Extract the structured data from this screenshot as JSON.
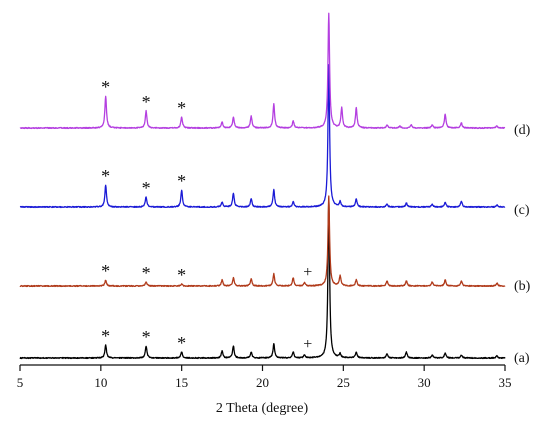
{
  "chart_data": {
    "type": "line",
    "xlabel": "2 Theta (degree)",
    "xlim": [
      5,
      35
    ],
    "x_ticks": [
      "5",
      "10",
      "15",
      "20",
      "25",
      "30",
      "35"
    ],
    "y_ticks_shown": false,
    "grid": false,
    "series": [
      {
        "name": "(a)",
        "color": "#000000",
        "peaks": [
          [
            10.3,
            13
          ],
          [
            12.8,
            12
          ],
          [
            15.0,
            6
          ],
          [
            17.5,
            7
          ],
          [
            18.2,
            12
          ],
          [
            19.3,
            6
          ],
          [
            20.7,
            14
          ],
          [
            21.9,
            6
          ],
          [
            22.6,
            3
          ],
          [
            24.1,
            160
          ],
          [
            24.8,
            4
          ],
          [
            25.8,
            6
          ],
          [
            27.7,
            4
          ],
          [
            28.9,
            6
          ],
          [
            30.5,
            3
          ],
          [
            31.3,
            5
          ],
          [
            32.3,
            3
          ],
          [
            34.5,
            2
          ]
        ],
        "markers": [
          {
            "x": 10.3,
            "symbol": "*"
          },
          {
            "x": 12.8,
            "symbol": "*"
          },
          {
            "x": 15.0,
            "symbol": "*"
          },
          {
            "x": 22.8,
            "symbol": "+"
          }
        ]
      },
      {
        "name": "(b)",
        "color": "#b03a1a",
        "peaks": [
          [
            10.3,
            6
          ],
          [
            12.8,
            4
          ],
          [
            15.0,
            2
          ],
          [
            17.5,
            6
          ],
          [
            18.2,
            8
          ],
          [
            19.3,
            7
          ],
          [
            20.7,
            12
          ],
          [
            21.9,
            8
          ],
          [
            22.6,
            3
          ],
          [
            24.1,
            90
          ],
          [
            24.8,
            10
          ],
          [
            25.8,
            6
          ],
          [
            27.7,
            5
          ],
          [
            28.9,
            5
          ],
          [
            30.5,
            4
          ],
          [
            31.3,
            6
          ],
          [
            32.3,
            5
          ],
          [
            34.5,
            3
          ]
        ],
        "markers": [
          {
            "x": 10.3,
            "symbol": "*"
          },
          {
            "x": 12.8,
            "symbol": "*"
          },
          {
            "x": 15.0,
            "symbol": "*"
          },
          {
            "x": 22.8,
            "symbol": "+"
          }
        ]
      },
      {
        "name": "(c)",
        "color": "#1a1ad6",
        "peaks": [
          [
            10.3,
            22
          ],
          [
            12.8,
            10
          ],
          [
            15.0,
            17
          ],
          [
            17.5,
            5
          ],
          [
            18.2,
            14
          ],
          [
            19.3,
            8
          ],
          [
            20.7,
            17
          ],
          [
            21.9,
            5
          ],
          [
            24.1,
            142
          ],
          [
            24.8,
            5
          ],
          [
            25.8,
            8
          ],
          [
            27.7,
            3
          ],
          [
            28.9,
            4
          ],
          [
            30.5,
            3
          ],
          [
            31.3,
            5
          ],
          [
            32.3,
            6
          ],
          [
            34.5,
            2
          ]
        ],
        "markers": [
          {
            "x": 10.3,
            "symbol": "*"
          },
          {
            "x": 12.8,
            "symbol": "*"
          },
          {
            "x": 15.0,
            "symbol": "*"
          }
        ]
      },
      {
        "name": "(d)",
        "color": "#b43fe0",
        "peaks": [
          [
            10.3,
            32
          ],
          [
            12.8,
            17
          ],
          [
            15.0,
            11
          ],
          [
            17.5,
            6
          ],
          [
            18.2,
            11
          ],
          [
            19.3,
            12
          ],
          [
            20.7,
            24
          ],
          [
            21.9,
            7
          ],
          [
            24.1,
            115
          ],
          [
            24.9,
            20
          ],
          [
            25.8,
            20
          ],
          [
            27.7,
            3
          ],
          [
            28.5,
            2
          ],
          [
            29.2,
            3
          ],
          [
            30.5,
            3
          ],
          [
            31.3,
            14
          ],
          [
            32.3,
            5
          ],
          [
            34.5,
            2
          ]
        ],
        "markers": [
          {
            "x": 10.3,
            "symbol": "*"
          },
          {
            "x": 12.8,
            "symbol": "*"
          },
          {
            "x": 15.0,
            "symbol": "*"
          }
        ]
      }
    ]
  }
}
